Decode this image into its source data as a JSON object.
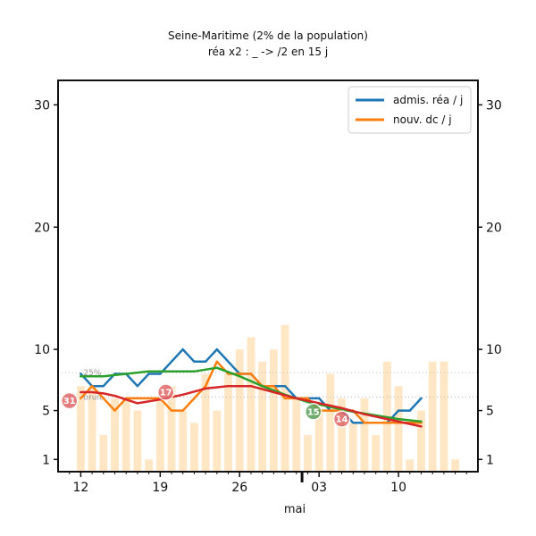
{
  "chart_data": {
    "type": "line",
    "title": "Seine-Maritime (2% de la population)",
    "subtitle": "réa x2 : _ -> /2 en 15 j",
    "xlabel": "mai",
    "ylabel": "",
    "x_tick_labels": [
      {
        "day": 0,
        "label": "12"
      },
      {
        "day": 7,
        "label": "19"
      },
      {
        "day": 14,
        "label": "26"
      },
      {
        "day": 21,
        "label": "03"
      },
      {
        "day": 28,
        "label": "10"
      }
    ],
    "y_ticks": [
      1,
      5,
      10,
      20,
      30
    ],
    "ylim": [
      0,
      32
    ],
    "xlim": [
      -2,
      35
    ],
    "legend": {
      "position": "top-right",
      "entries": [
        {
          "label": "admis. réa / j",
          "color": "#1f77b4"
        },
        {
          "label": "nouv. dc / j",
          "color": "#ff7f0e"
        }
      ]
    },
    "series": [
      {
        "name": "admis. réa / j",
        "color": "#1f77b4",
        "x": [
          0,
          1,
          2,
          3,
          4,
          5,
          6,
          7,
          8,
          9,
          10,
          11,
          12,
          13,
          14,
          15,
          16,
          17,
          18,
          19,
          20,
          21,
          22,
          23,
          24,
          25,
          26,
          27,
          28,
          29,
          30
        ],
        "y": [
          8,
          7,
          7,
          8,
          8,
          7,
          8,
          8,
          9,
          10,
          9,
          9,
          10,
          9,
          8,
          8,
          7,
          7,
          7,
          6,
          6,
          6,
          5,
          5,
          4,
          4,
          4,
          4,
          5,
          5,
          6
        ]
      },
      {
        "name": "nouv. dc / j",
        "color": "#ff7f0e",
        "x": [
          0,
          1,
          2,
          3,
          4,
          5,
          6,
          7,
          8,
          9,
          10,
          11,
          12,
          13,
          14,
          15,
          16,
          17,
          18,
          19,
          20,
          21,
          22,
          23,
          24,
          25,
          26,
          27,
          28,
          29,
          30
        ],
        "y": [
          6,
          7,
          6,
          5,
          6,
          6,
          6,
          6,
          5,
          5,
          6,
          7,
          9,
          8,
          8,
          8,
          7,
          7,
          6,
          6,
          6,
          5,
          5,
          5,
          5,
          4,
          4,
          4,
          4,
          4,
          4
        ]
      },
      {
        "color": "#2ca02c",
        "x": [
          0,
          2,
          4,
          6,
          8,
          10,
          12,
          14,
          16,
          18,
          20,
          22,
          24,
          26,
          28,
          30
        ],
        "y": [
          7.8,
          7.8,
          8,
          8.2,
          8.2,
          8.2,
          8.5,
          7.8,
          7.0,
          6.3,
          5.7,
          5.3,
          4.9,
          4.6,
          4.3,
          4.1
        ]
      },
      {
        "color": "#d62728",
        "x": [
          0,
          1,
          2,
          3,
          5,
          7,
          9,
          11,
          13,
          15,
          17,
          19,
          21,
          23,
          25,
          27,
          29,
          30
        ],
        "y": [
          6.5,
          6.5,
          6.4,
          6.2,
          5.6,
          5.9,
          6.3,
          6.8,
          7.0,
          7.0,
          6.5,
          6.0,
          5.6,
          5.2,
          4.7,
          4.3,
          3.9,
          3.7
        ]
      }
    ],
    "bars": {
      "color": "#ffe7c6",
      "x": [
        0,
        1,
        2,
        3,
        4,
        5,
        6,
        7,
        8,
        9,
        10,
        11,
        12,
        13,
        14,
        15,
        16,
        17,
        18,
        19,
        20,
        21,
        22,
        23,
        24,
        25,
        26,
        27,
        28,
        29,
        30,
        31,
        32,
        33
      ],
      "values": [
        7,
        7,
        3,
        6,
        6,
        5,
        1,
        6,
        7,
        5,
        4,
        8,
        5,
        8,
        10,
        11,
        9,
        10,
        12,
        6,
        3,
        5,
        8,
        6,
        4,
        6,
        3,
        9,
        7,
        1,
        5,
        9,
        9,
        1
      ]
    },
    "reference_lines": [
      {
        "label": "25%",
        "y": 8.1,
        "style": "dotted"
      },
      {
        "label": "bruit",
        "y": 6.1,
        "style": "dotted"
      }
    ],
    "badges": [
      {
        "label": "31",
        "x": -1.0,
        "y": 5.8,
        "color": "#e06868"
      },
      {
        "label": "17",
        "x": 7.5,
        "y": 6.5,
        "color": "#e06868"
      },
      {
        "label": "15",
        "x": 20.5,
        "y": 4.9,
        "color": "#5aa05a"
      },
      {
        "label": "14",
        "x": 23.0,
        "y": 4.3,
        "color": "#e06868"
      }
    ],
    "marker_day": 19.5
  }
}
